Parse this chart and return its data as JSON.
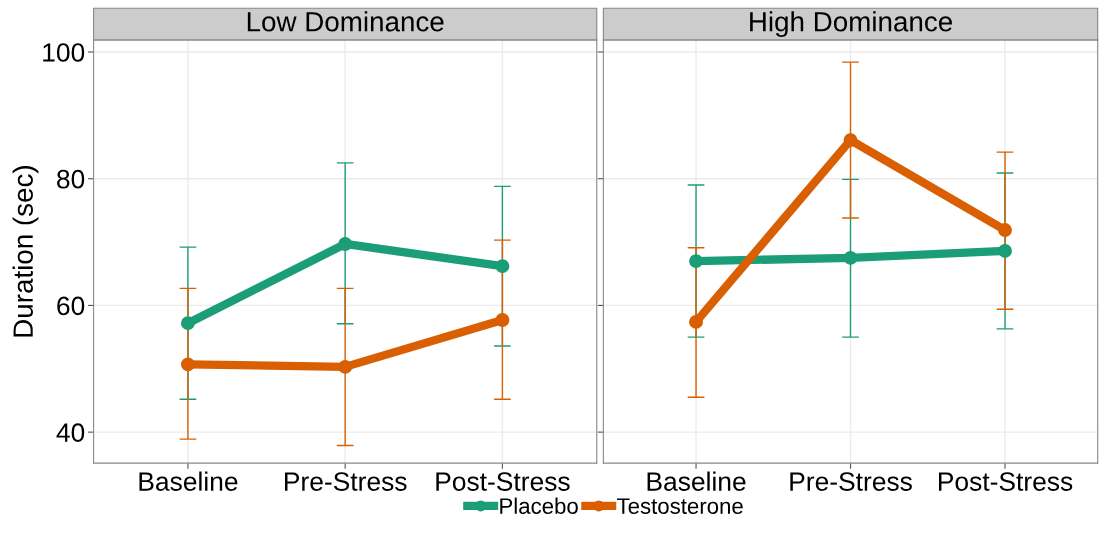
{
  "chart_data": [
    {
      "type": "line",
      "title": "Low Dominance",
      "ylabel": "Duration (sec)",
      "categories": [
        "Baseline",
        "Pre-Stress",
        "Post-Stress"
      ],
      "ylim": [
        35.1,
        101.9
      ],
      "yticks": [
        40,
        60,
        80,
        100
      ],
      "grid": true,
      "marker": "circle",
      "legend": "bottom",
      "series": [
        {
          "name": "Placebo",
          "color": "#1b9e77",
          "values": [
            57.2,
            69.7,
            66.2
          ],
          "errors": [
            [
              45.2,
              69.2
            ],
            [
              57.1,
              82.5
            ],
            [
              53.6,
              78.8
            ]
          ]
        },
        {
          "name": "Testosterone",
          "color": "#d95f02",
          "values": [
            50.7,
            50.3,
            57.7
          ],
          "errors": [
            [
              38.9,
              62.7
            ],
            [
              37.9,
              62.7
            ],
            [
              45.2,
              70.3
            ]
          ]
        }
      ]
    },
    {
      "type": "line",
      "title": "High Dominance",
      "categories": [
        "Baseline",
        "Pre-Stress",
        "Post-Stress"
      ],
      "ylim": [
        35.1,
        101.9
      ],
      "yticks": [
        40,
        60,
        80,
        100
      ],
      "tick_labels": "x",
      "grid": true,
      "marker": "circle",
      "series": [
        {
          "name": "Placebo",
          "color": "#1b9e77",
          "values": [
            67.0,
            67.5,
            68.6
          ],
          "errors": [
            [
              55.0,
              79.0
            ],
            [
              55.0,
              79.9
            ],
            [
              56.3,
              80.9
            ]
          ]
        },
        {
          "name": "Testosterone",
          "color": "#d95f02",
          "values": [
            57.4,
            86.1,
            71.9
          ],
          "errors": [
            [
              45.5,
              69.1
            ],
            [
              73.8,
              98.4
            ],
            [
              59.4,
              84.2
            ]
          ]
        }
      ]
    }
  ]
}
